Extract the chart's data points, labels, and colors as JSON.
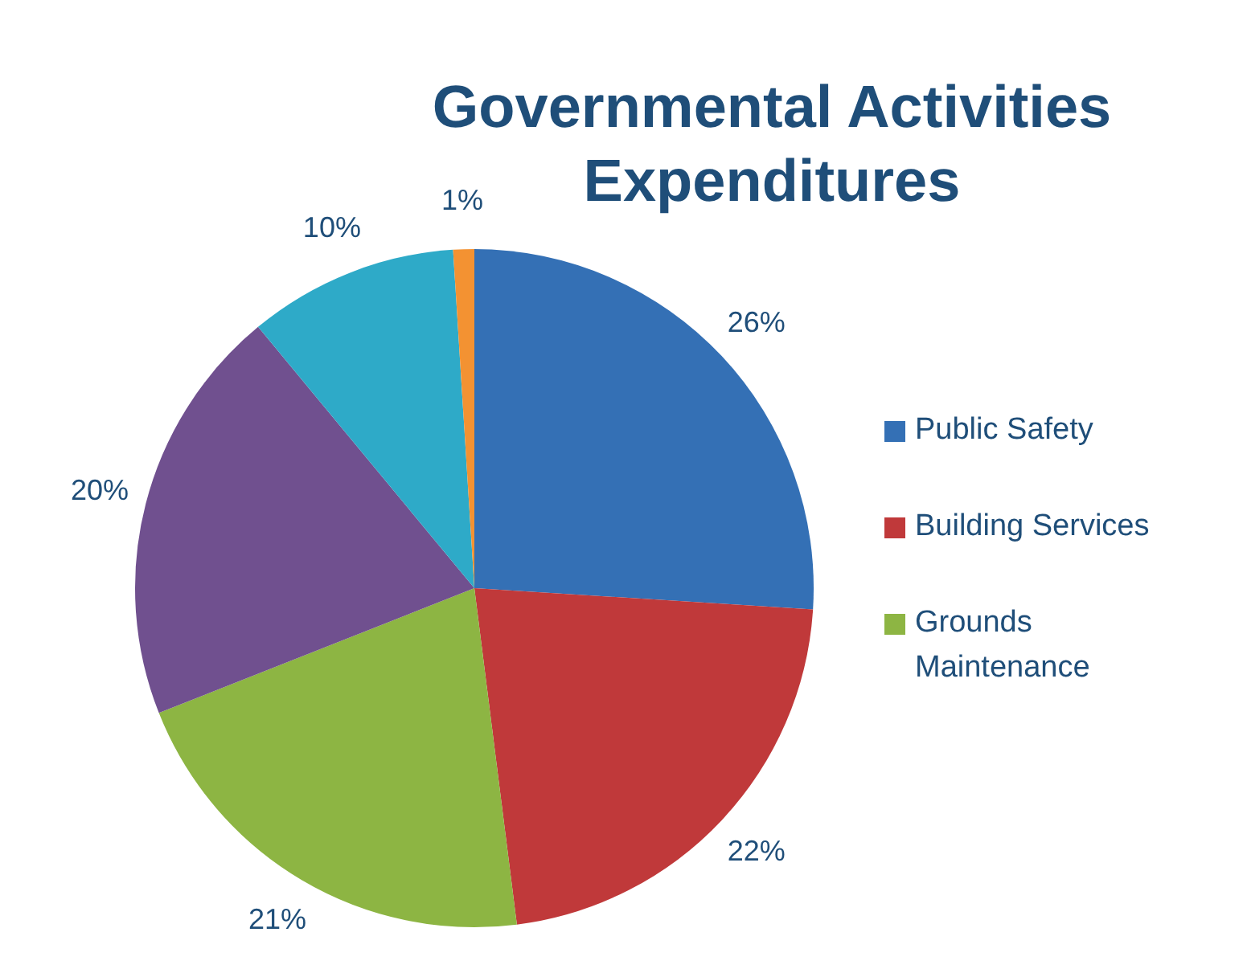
{
  "chart_data": {
    "type": "pie",
    "title": "Governmental Activities Expenditures",
    "categories": [
      "Public Safety",
      "Building Services",
      "Grounds Maintenance",
      null,
      null,
      null
    ],
    "values": [
      26,
      22,
      21,
      20,
      10,
      1
    ],
    "colors": [
      "#3470b5",
      "#c0393a",
      "#8db543",
      "#70508f",
      "#2eaac8",
      "#f39232"
    ],
    "value_labels": [
      "26%",
      "22%",
      "21%",
      "20%",
      "10%",
      "1%"
    ],
    "legend": "right"
  }
}
